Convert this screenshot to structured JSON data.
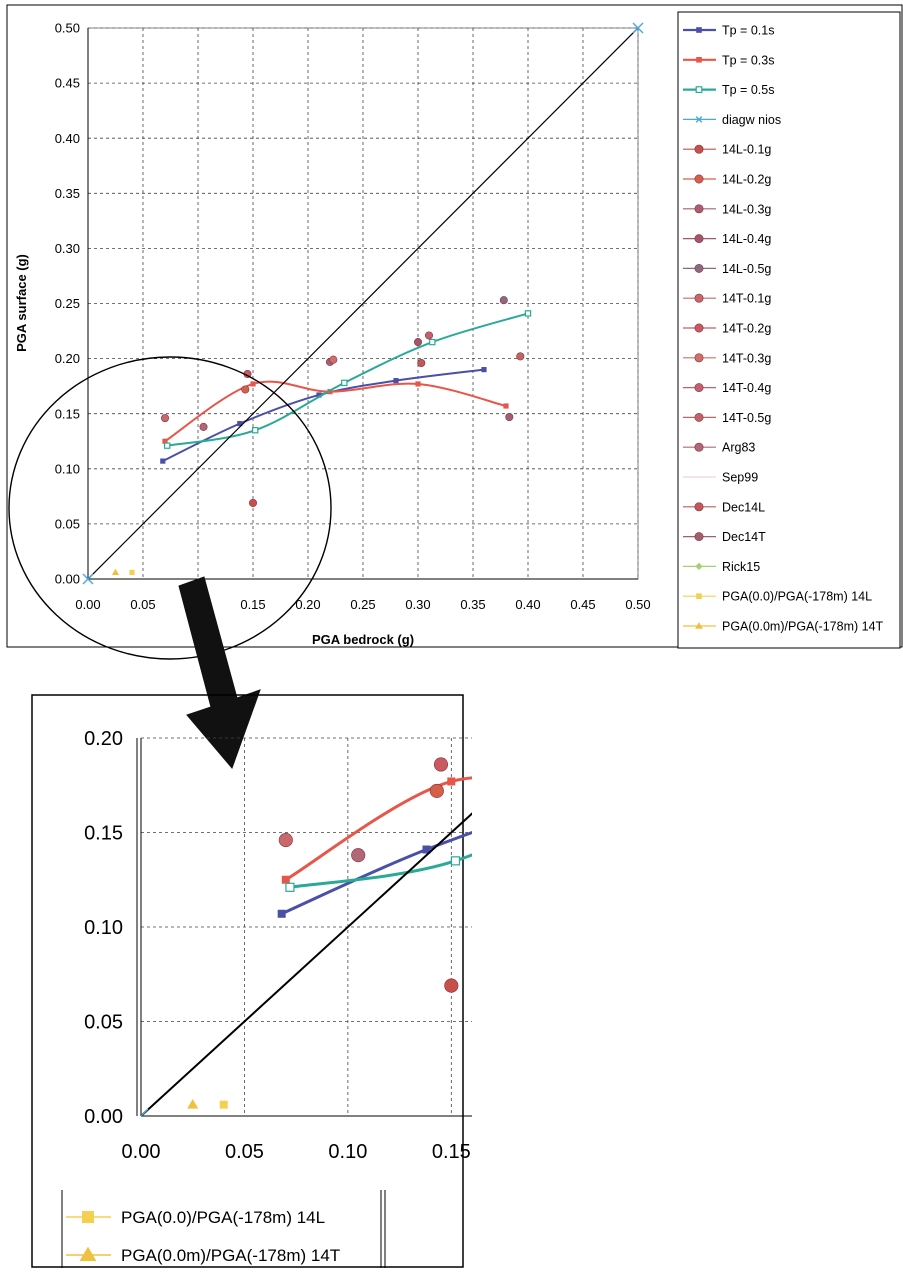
{
  "chart_data": [
    {
      "type": "scatter",
      "xlabel": "PGA bedrock (g)",
      "ylabel": "PGA surface (g)",
      "xlim": [
        0,
        0.5
      ],
      "ylim": [
        0,
        0.5
      ],
      "x_ticks": [
        "0.00",
        "0.05",
        "0.10",
        "0.15",
        "0.20",
        "0.25",
        "0.30",
        "0.35",
        "0.40",
        "0.45",
        "0.50"
      ],
      "y_ticks": [
        "0.00",
        "0.05",
        "0.10",
        "0.15",
        "0.20",
        "0.25",
        "0.30",
        "0.35",
        "0.40",
        "0.45",
        "0.50"
      ],
      "grid": true,
      "legend_position": "right",
      "annotation": "circle around region 0-0.15 with arrow pointing to zoomed view",
      "series": [
        {
          "name": "Tp = 0.1s",
          "color": "#4a4fa8",
          "marker": "square",
          "smooth": true,
          "points": [
            [
              0.068,
              0.107
            ],
            [
              0.138,
              0.141
            ],
            [
              0.21,
              0.167
            ],
            [
              0.28,
              0.18
            ],
            [
              0.36,
              0.19
            ]
          ]
        },
        {
          "name": "Tp = 0.3s",
          "color": "#e8564a",
          "marker": "square",
          "smooth": true,
          "points": [
            [
              0.07,
              0.125
            ],
            [
              0.15,
              0.177
            ],
            [
              0.22,
              0.17
            ],
            [
              0.3,
              0.177
            ],
            [
              0.38,
              0.157
            ]
          ]
        },
        {
          "name": "Tp = 0.5s",
          "color": "#2aaa96",
          "marker": "open-square",
          "smooth": true,
          "points": [
            [
              0.072,
              0.121
            ],
            [
              0.152,
              0.135
            ],
            [
              0.233,
              0.178
            ],
            [
              0.313,
              0.215
            ],
            [
              0.4,
              0.241
            ]
          ]
        },
        {
          "name": "diagw nios",
          "color": "#000000",
          "marker": "x",
          "smooth": false,
          "points": [
            [
              0,
              0
            ],
            [
              0.5,
              0.5
            ]
          ]
        },
        {
          "name": "14L-0.1g",
          "color": "#c8504a",
          "marker": "circle",
          "points": [
            [
              0.15,
              0.069
            ]
          ]
        },
        {
          "name": "14L-0.2g",
          "color": "#d4604a",
          "marker": "circle",
          "points": [
            [
              0.143,
              0.172
            ]
          ]
        },
        {
          "name": "14L-0.3g",
          "color": "#a86070",
          "marker": "circle",
          "points": [
            [
              0.22,
              0.197
            ]
          ]
        },
        {
          "name": "14L-0.4g",
          "color": "#a05868",
          "marker": "circle",
          "points": [
            [
              0.3,
              0.215
            ]
          ]
        },
        {
          "name": "14L-0.5g",
          "color": "#8a6a80",
          "marker": "circle",
          "points": [
            [
              0.378,
              0.253
            ]
          ]
        },
        {
          "name": "14T-0.1g",
          "color": "#c8686a",
          "marker": "circle",
          "points": [
            [
              0.07,
              0.146
            ]
          ]
        },
        {
          "name": "14T-0.2g",
          "color": "#c85a60",
          "marker": "circle",
          "points": [
            [
              0.145,
              0.186
            ]
          ]
        },
        {
          "name": "14T-0.3g",
          "color": "#d07068",
          "marker": "circle",
          "points": [
            [
              0.223,
              0.199
            ]
          ]
        },
        {
          "name": "14T-0.4g",
          "color": "#c06070",
          "marker": "circle",
          "points": [
            [
              0.31,
              0.221
            ]
          ]
        },
        {
          "name": "14T-0.5g",
          "color": "#c06468",
          "marker": "circle",
          "points": [
            [
              0.393,
              0.202
            ]
          ]
        },
        {
          "name": "Arg83",
          "color": "#b06878",
          "marker": "circle",
          "points": [
            [
              0.105,
              0.138
            ]
          ]
        },
        {
          "name": "Sep99",
          "color": "#f0c8c8",
          "marker": "none",
          "points": []
        },
        {
          "name": "Dec14L",
          "color": "#c05a58",
          "marker": "circle",
          "points": [
            [
              0.303,
              0.196
            ]
          ]
        },
        {
          "name": "Dec14T",
          "color": "#a06070",
          "marker": "circle",
          "points": [
            [
              0.383,
              0.147
            ]
          ]
        },
        {
          "name": "Rick15",
          "color": "#a8d070",
          "marker": "diamond",
          "points": []
        },
        {
          "name": "PGA(0.0)/PGA(-178m) 14L",
          "color": "#f5d050",
          "marker": "square",
          "points": [
            [
              0.04,
              0.006
            ]
          ]
        },
        {
          "name": "PGA(0.0m)/PGA(-178m) 14T",
          "color": "#f0c040",
          "marker": "triangle",
          "points": [
            [
              0.025,
              0.006
            ]
          ]
        }
      ]
    },
    {
      "type": "scatter",
      "title": "",
      "xlim": [
        0,
        0.16
      ],
      "ylim": [
        0,
        0.2
      ],
      "x_ticks": [
        "0.00",
        "0.05",
        "0.10",
        "0.15"
      ],
      "y_ticks": [
        "0.00",
        "0.05",
        "0.10",
        "0.15",
        "0.20"
      ],
      "grid": true,
      "legend_position": "bottom",
      "legend": [
        "PGA(0.0)/PGA(-178m) 14L",
        "PGA(0.0m)/PGA(-178m) 14T"
      ]
    }
  ]
}
